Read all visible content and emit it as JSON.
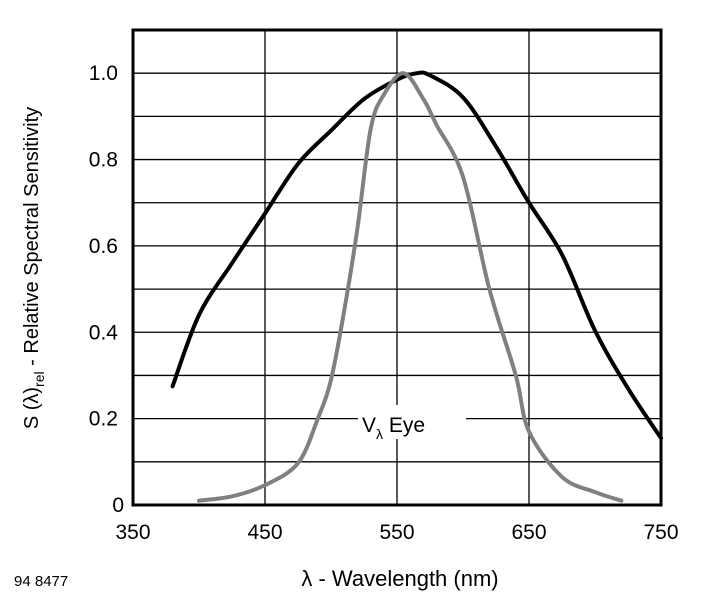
{
  "chart_data": {
    "type": "line",
    "xlabel": "λ - Wavelength (nm)",
    "ylabel_parts": [
      "S (λ)",
      "rel",
      " - Relative Spectral Sensitivity"
    ],
    "xlim": [
      350,
      750
    ],
    "ylim": [
      0,
      1.1
    ],
    "xticks": [
      350,
      450,
      550,
      650,
      750
    ],
    "yticks": [
      {
        "v": 0,
        "label": "0"
      },
      {
        "v": 0.2,
        "label": "0.2"
      },
      {
        "v": 0.4,
        "label": "0.4"
      },
      {
        "v": 0.6,
        "label": "0.6"
      },
      {
        "v": 0.8,
        "label": "0.8"
      },
      {
        "v": 1.0,
        "label": "1.0"
      }
    ],
    "grid": true,
    "figure_id": "94 8477",
    "series": [
      {
        "color": "#000000",
        "x": [
          380,
          400,
          425,
          450,
          475,
          500,
          525,
          550,
          565,
          575,
          600,
          625,
          650,
          675,
          700,
          725,
          750
        ],
        "y": [
          0.275,
          0.44,
          0.56,
          0.675,
          0.79,
          0.867,
          0.94,
          0.985,
          1.0,
          0.995,
          0.944,
          0.83,
          0.7,
          0.58,
          0.404,
          0.27,
          0.155
        ]
      },
      {
        "name_main": "V",
        "name_sub": "λ",
        "name_rest": " Eye",
        "color": "#808080",
        "x": [
          400,
          425,
          450,
          475,
          490,
          500,
          510,
          520,
          530,
          540,
          555,
          570,
          580,
          600,
          620,
          640,
          650,
          675,
          700,
          720
        ],
        "y": [
          0.01,
          0.02,
          0.046,
          0.097,
          0.2,
          0.29,
          0.45,
          0.64,
          0.87,
          0.95,
          1.0,
          0.94,
          0.88,
          0.76,
          0.5,
          0.3,
          0.17,
          0.065,
          0.03,
          0.01
        ]
      }
    ]
  }
}
